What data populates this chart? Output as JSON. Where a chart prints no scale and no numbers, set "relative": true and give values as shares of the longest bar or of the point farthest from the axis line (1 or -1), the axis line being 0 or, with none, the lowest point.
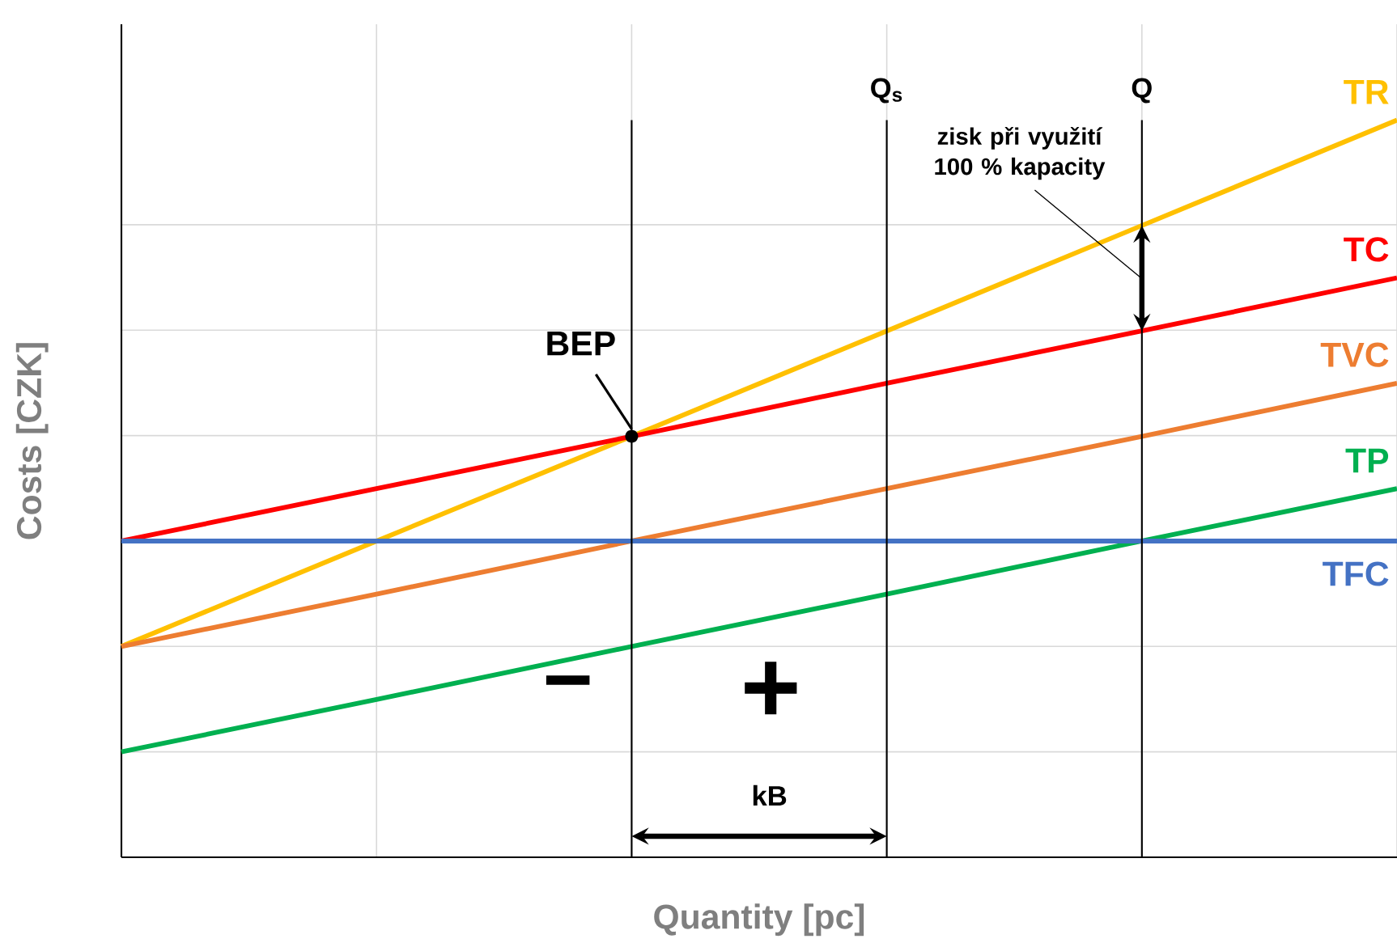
{
  "chart_data": {
    "type": "line",
    "xlabel": "Quantity [pc]",
    "ylabel": "Costs [CZK]",
    "relative": true,
    "grid": true,
    "marker": "none",
    "line_style": "solid",
    "categories": [
      null,
      null,
      null,
      null,
      null,
      null
    ],
    "series": [
      {
        "name": "TR",
        "color": "#ffc000",
        "values": [
          0.286,
          0.429,
          0.571,
          0.714,
          0.857,
          1
        ]
      },
      {
        "name": "TC",
        "color": "#ff0000",
        "values": [
          0.429,
          0.5,
          0.571,
          0.643,
          0.714,
          0.786
        ]
      },
      {
        "name": "TVC",
        "color": "#ed7d31",
        "values": [
          0.286,
          0.357,
          0.429,
          0.5,
          0.571,
          0.643
        ]
      },
      {
        "name": "TP",
        "color": "#00b050",
        "values": [
          0.143,
          0.214,
          0.286,
          0.357,
          0.429,
          0.5
        ]
      },
      {
        "name": "TFC",
        "color": "#4472c4",
        "values": [
          0.429,
          0.429,
          0.429,
          0.429,
          0.429,
          0.429
        ]
      }
    ],
    "annotations": [
      "BEP",
      "zisk při využití 100 % kapacity",
      "−",
      "+",
      "kB",
      "Q$_{s}$",
      "Q"
    ]
  }
}
